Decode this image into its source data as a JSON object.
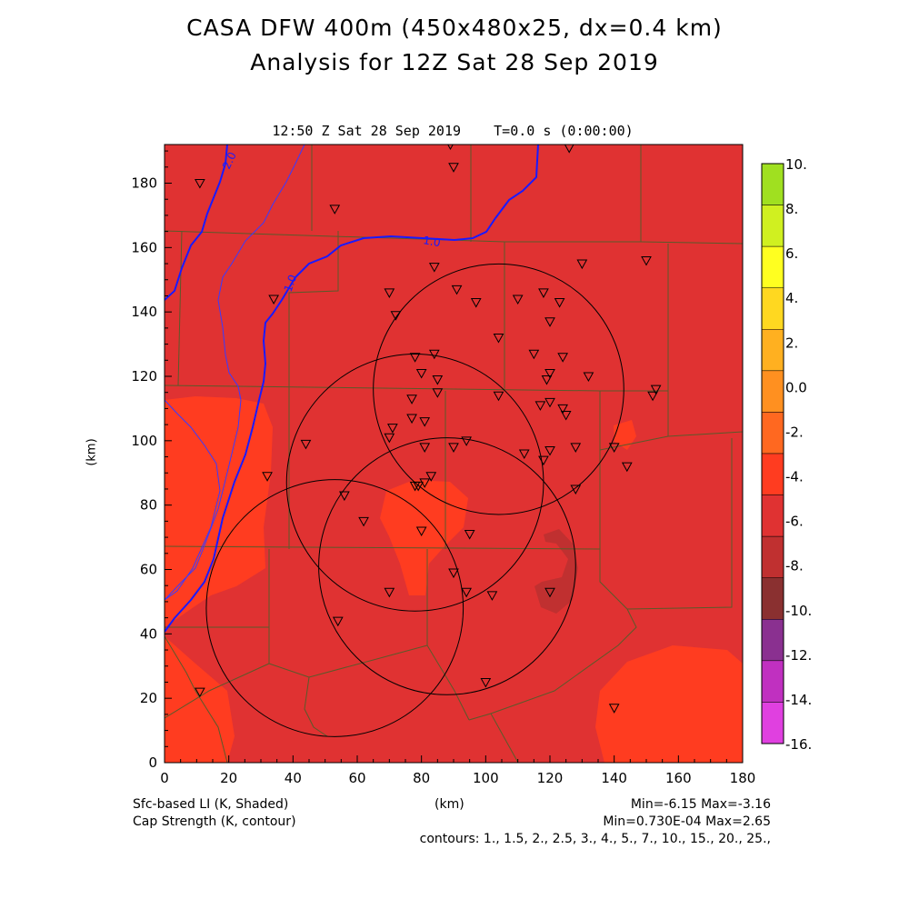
{
  "header": {
    "title_line1": "CASA DFW 400m (450x480x25, dx=0.4 km)",
    "title_line2": "Analysis for 12Z Sat 28 Sep 2019",
    "time_label": "12:50 Z Sat 28 Sep 2019    T=0.0 s (0:00:00)"
  },
  "footer": {
    "left_line1": "Sfc-based LI (K, Shaded)",
    "left_line2": "Cap Strength (K, contour)",
    "x_unit": "(km)",
    "stats_line1": "Min=-6.15 Max=-3.16",
    "stats_line2": "Min=0.730E-04 Max=2.65",
    "contours_line": "contours: 1., 1.5, 2., 2.5, 3., 4., 5., 7., 10., 15., 20., 25.,"
  },
  "chart_data": {
    "type": "heatmap",
    "xlabel": "",
    "ylabel": "(km)",
    "xlim": [
      0,
      180
    ],
    "ylim": [
      0,
      192
    ],
    "x_ticks": [
      "0",
      "20",
      "40",
      "60",
      "80",
      "100",
      "120",
      "140",
      "160",
      "180"
    ],
    "y_ticks": [
      "0",
      "20",
      "40",
      "60",
      "80",
      "100",
      "120",
      "140",
      "160",
      "180"
    ],
    "base_fill_color": "#e03232",
    "colorbar": {
      "labels": [
        "10.",
        "8.",
        "6.",
        "4.",
        "2.",
        "0.0",
        "-2.",
        "-4.",
        "-6.",
        "-8.",
        "-10.",
        "-12.",
        "-14.",
        "-16."
      ],
      "colors": [
        "#a0e020",
        "#d0f020",
        "#ffff20",
        "#ffd820",
        "#ffb020",
        "#ff9020",
        "#ff6820",
        "#ff3c20",
        "#e03232",
        "#c03030",
        "#8a3030",
        "#8a3090",
        "#c030c0",
        "#e040e0"
      ]
    },
    "contour_labels": [
      "2.0",
      "1.0",
      "1.0"
    ],
    "radar_rings": [
      {
        "cx": 104,
        "cy": 116,
        "r": 39
      },
      {
        "cx": 78,
        "cy": 87,
        "r": 40
      },
      {
        "cx": 88,
        "cy": 61,
        "r": 40
      },
      {
        "cx": 53,
        "cy": 48,
        "r": 40
      }
    ],
    "stations": [
      [
        11,
        180
      ],
      [
        89,
        192
      ],
      [
        126,
        191
      ],
      [
        90,
        185
      ],
      [
        53,
        172
      ],
      [
        150,
        156
      ],
      [
        130,
        155
      ],
      [
        84,
        154
      ],
      [
        34,
        144
      ],
      [
        91,
        147
      ],
      [
        70,
        146
      ],
      [
        118,
        146
      ],
      [
        110,
        144
      ],
      [
        97,
        143
      ],
      [
        123,
        143
      ],
      [
        72,
        139
      ],
      [
        120,
        137
      ],
      [
        104,
        132
      ],
      [
        115,
        127
      ],
      [
        78,
        126
      ],
      [
        84,
        127
      ],
      [
        124,
        126
      ],
      [
        80,
        121
      ],
      [
        120,
        121
      ],
      [
        119,
        119
      ],
      [
        132,
        120
      ],
      [
        85,
        119
      ],
      [
        104,
        114
      ],
      [
        77,
        113
      ],
      [
        85,
        115
      ],
      [
        120,
        112
      ],
      [
        117,
        111
      ],
      [
        124,
        110
      ],
      [
        125,
        108
      ],
      [
        152,
        114
      ],
      [
        153,
        116
      ],
      [
        77,
        107
      ],
      [
        81,
        106
      ],
      [
        71,
        104
      ],
      [
        70,
        101
      ],
      [
        44,
        99
      ],
      [
        90,
        98
      ],
      [
        81,
        98
      ],
      [
        94,
        100
      ],
      [
        128,
        98
      ],
      [
        120,
        97
      ],
      [
        112,
        96
      ],
      [
        140,
        98
      ],
      [
        118,
        94
      ],
      [
        144,
        92
      ],
      [
        32,
        89
      ],
      [
        83,
        89
      ],
      [
        81,
        87
      ],
      [
        79,
        86
      ],
      [
        78,
        86
      ],
      [
        56,
        83
      ],
      [
        128,
        85
      ],
      [
        62,
        75
      ],
      [
        80,
        72
      ],
      [
        95,
        71
      ],
      [
        90,
        59
      ],
      [
        70,
        53
      ],
      [
        94,
        53
      ],
      [
        102,
        52
      ],
      [
        120,
        53
      ],
      [
        54,
        44
      ],
      [
        100,
        25
      ],
      [
        11,
        22
      ],
      [
        140,
        17
      ]
    ]
  }
}
